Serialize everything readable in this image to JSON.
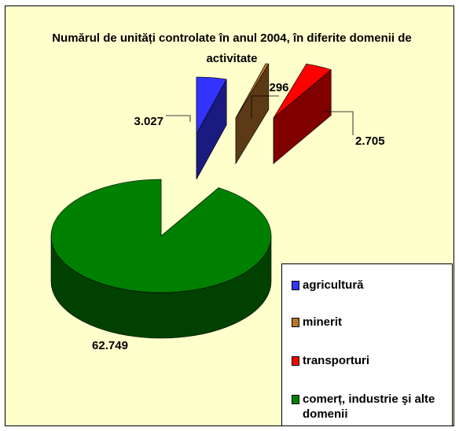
{
  "chart_data": {
    "type": "pie3d",
    "title": "Numărul de unități controlate în anul 2004, în diferite domenii de activitate",
    "categories": [
      "agricultură",
      "minerit",
      "transporturi",
      "comerț, industrie şi alte domenii"
    ],
    "values": [
      3027,
      296,
      2705,
      62749
    ],
    "value_labels": [
      "3.027",
      "296",
      "2.705",
      "62.749"
    ],
    "colors": [
      "#3333ff",
      "#b8742a",
      "#ff0000",
      "#008000"
    ],
    "legend": "bottom-right"
  }
}
